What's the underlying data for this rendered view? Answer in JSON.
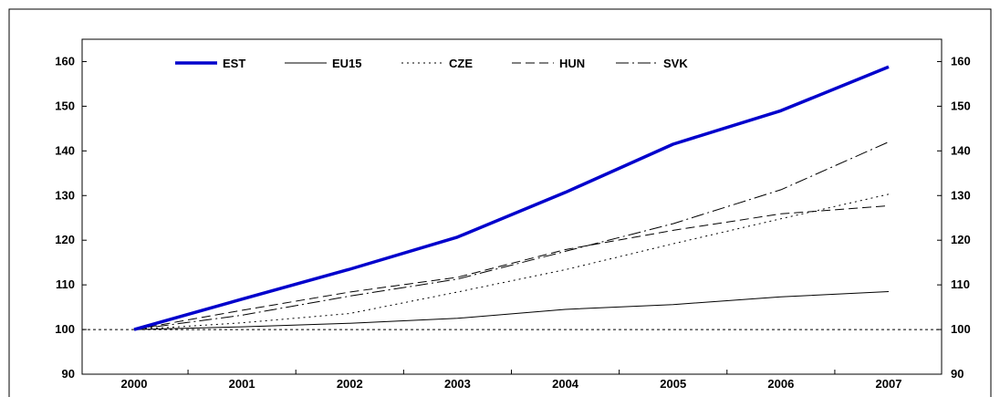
{
  "chart_data": {
    "type": "line",
    "x": [
      "2000",
      "2001",
      "2002",
      "2003",
      "2004",
      "2005",
      "2006",
      "2007"
    ],
    "ylim": [
      90,
      165
    ],
    "yticks": [
      90,
      100,
      110,
      120,
      130,
      140,
      150,
      160
    ],
    "reference_line": 100,
    "legend_position": "top-left",
    "grid": false,
    "series": [
      {
        "name": "EST",
        "style": "thick-solid",
        "color": "#0000cc",
        "values": [
          100,
          106.8,
          113.5,
          120.7,
          130.7,
          141.5,
          149.0,
          158.8
        ]
      },
      {
        "name": "EU15",
        "style": "solid",
        "color": "#000000",
        "values": [
          100,
          100.6,
          101.4,
          102.5,
          104.5,
          105.6,
          107.3,
          108.5
        ]
      },
      {
        "name": "CZE",
        "style": "dotted",
        "color": "#000000",
        "values": [
          100,
          101.5,
          103.6,
          108.4,
          113.4,
          119.2,
          124.8,
          130.3
        ]
      },
      {
        "name": "HUN",
        "style": "dashed",
        "color": "#000000",
        "values": [
          100,
          104.3,
          108.4,
          111.7,
          117.9,
          122.2,
          125.9,
          127.7
        ]
      },
      {
        "name": "SVK",
        "style": "dash-dot",
        "color": "#000000",
        "values": [
          100,
          103.2,
          107.5,
          111.3,
          117.5,
          123.7,
          131.3,
          142.0
        ]
      }
    ]
  }
}
